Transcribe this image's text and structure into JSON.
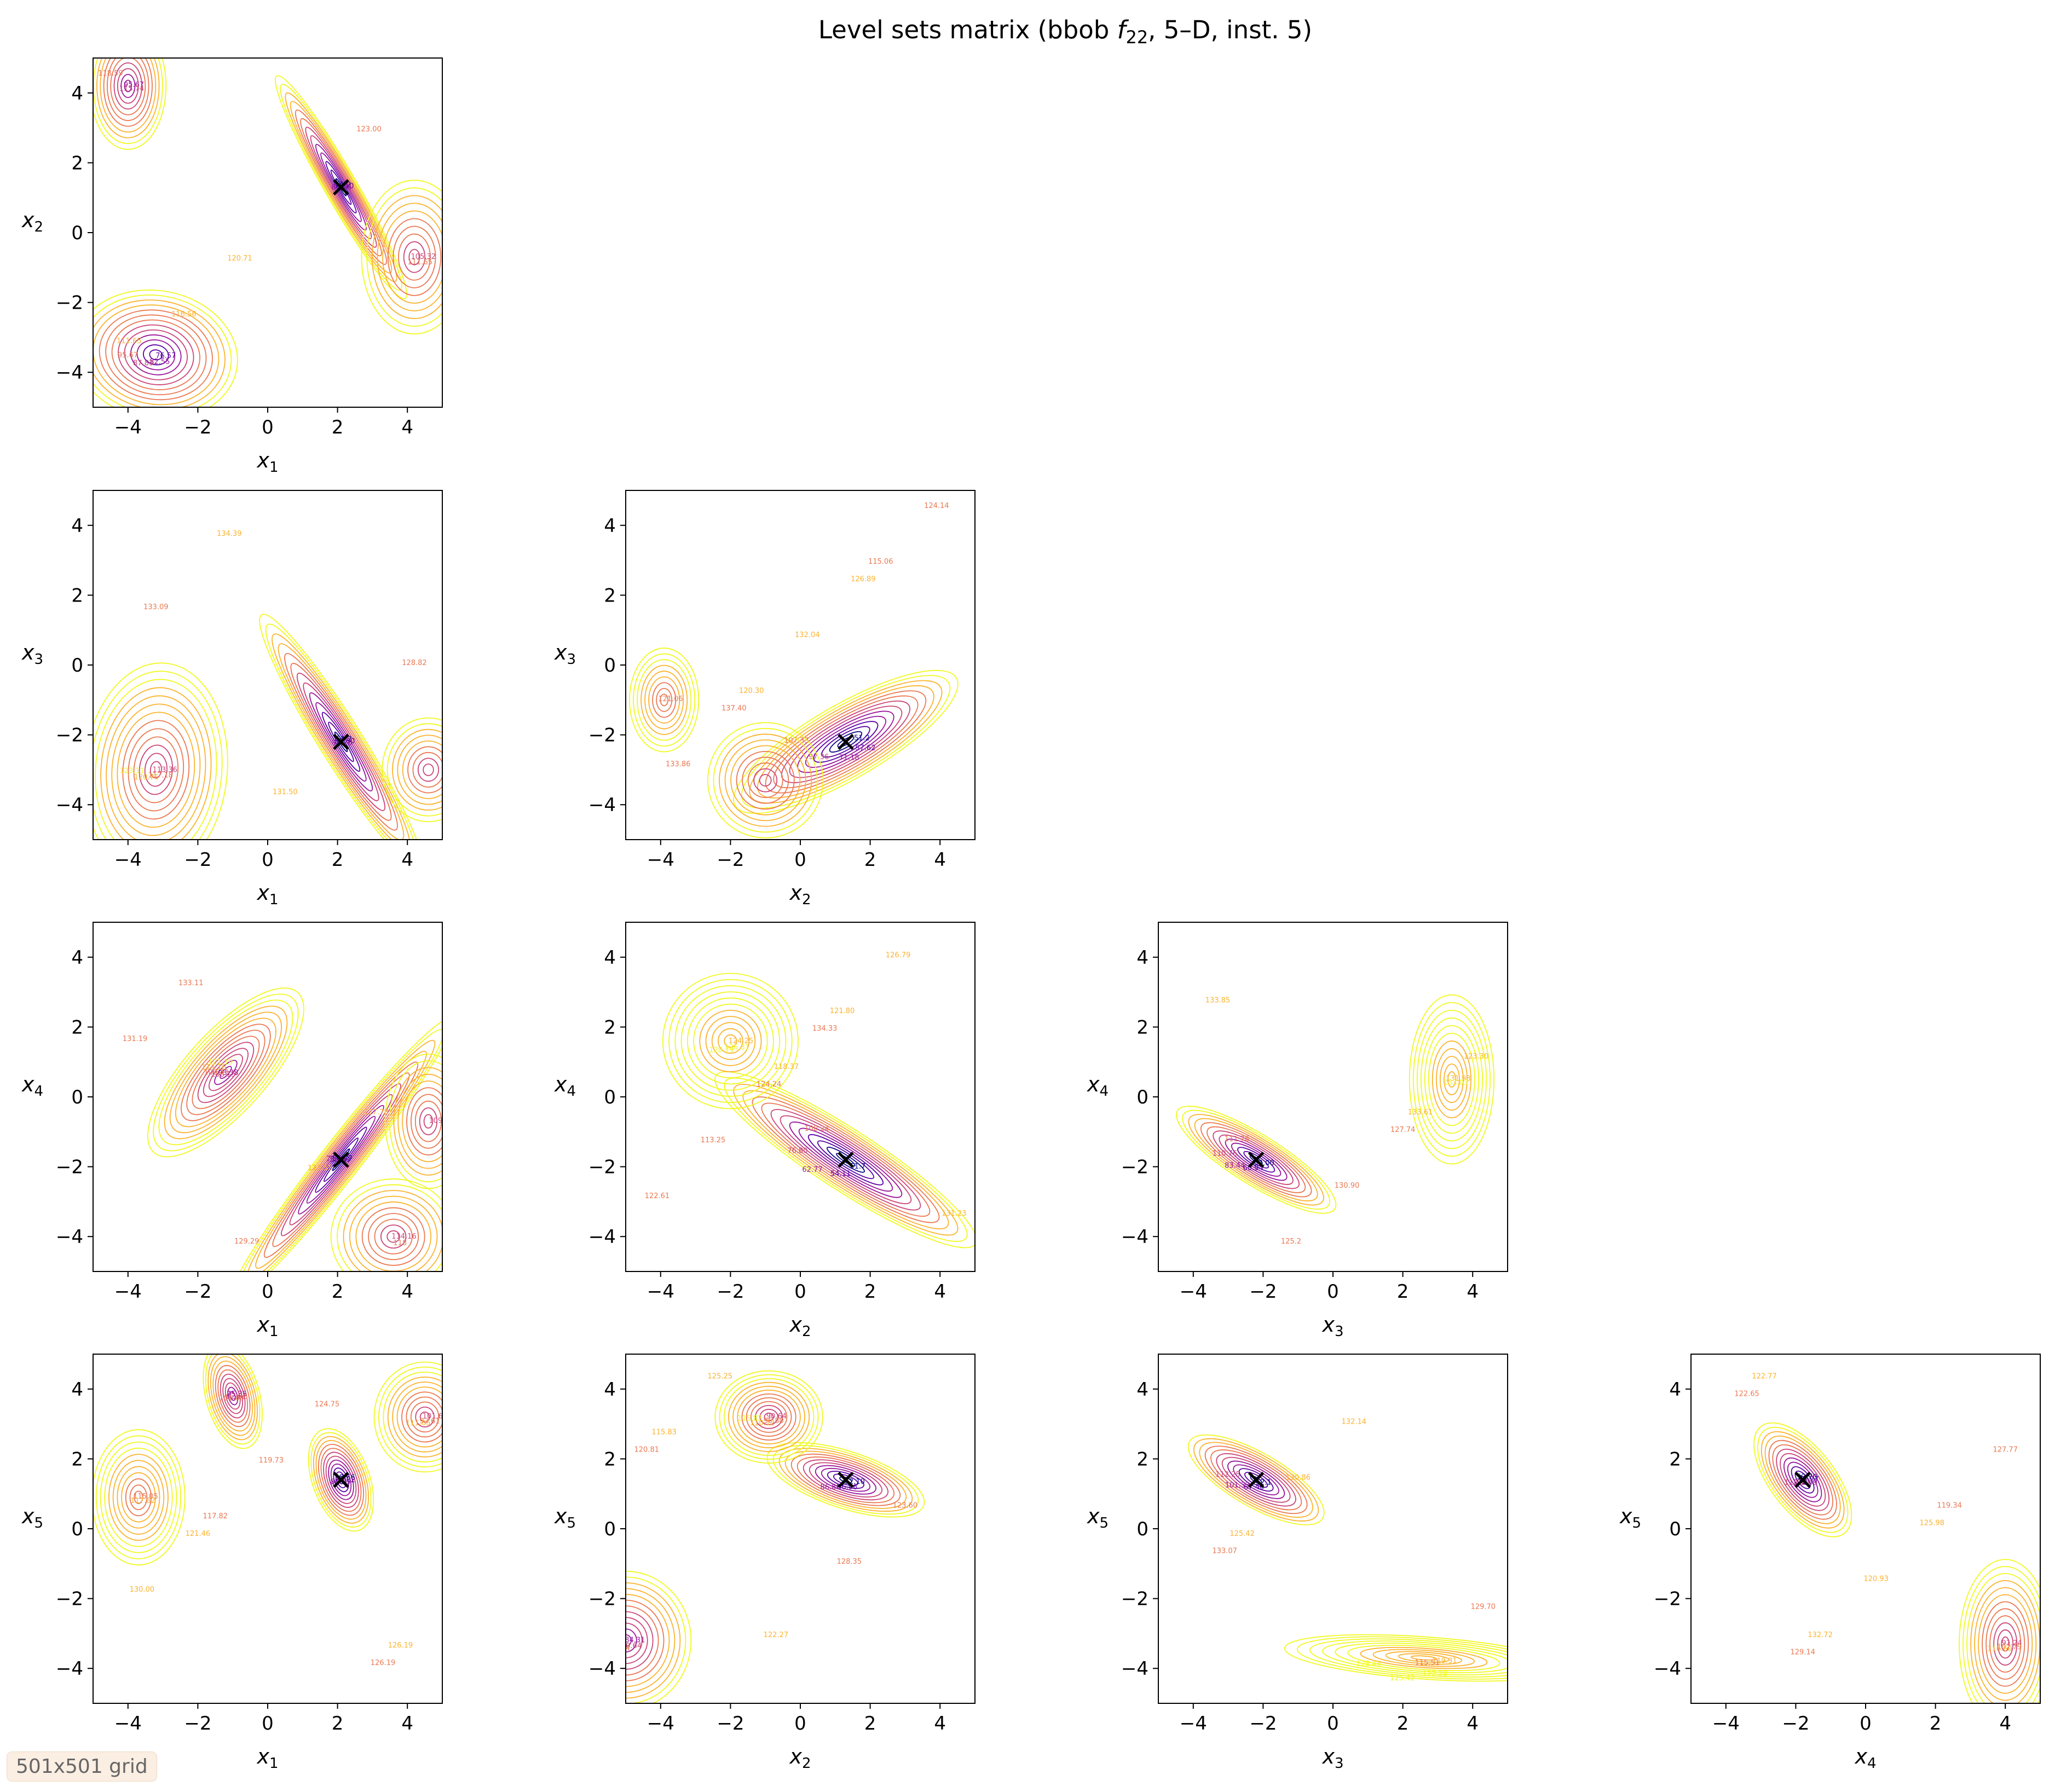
{
  "chart_data": {
    "type": "contour-matrix",
    "title": "Level sets matrix (bbob f₂₂, 5–D, inst. 5)",
    "title_parts": {
      "main": "Level sets matrix (bbob ",
      "f": "f",
      "sub": "22",
      "rest": ", 5–D, inst. 5)"
    },
    "grid_note": "501x501 grid",
    "xlim": [
      -5,
      5
    ],
    "ylim": [
      -5,
      5
    ],
    "ticks": [
      -4,
      -2,
      0,
      2,
      4
    ],
    "tick_labels": [
      "−4",
      "−2",
      "0",
      "2",
      "4"
    ],
    "optimum": {
      "x1": 2.1,
      "x2": 1.3,
      "x3": -2.2,
      "x4": -1.8,
      "x5": 1.4
    },
    "colormap": [
      "#0d0887",
      "#5b02a3",
      "#9a179b",
      "#cb4678",
      "#eb7852",
      "#fbb32f",
      "#f0f921"
    ],
    "grid": false,
    "panels": [
      {
        "id": "x1-x2",
        "xvar": "x",
        "xsub": "1",
        "yvar": "x",
        "ysub": "2",
        "opt": [
          2.1,
          1.3
        ],
        "minima": [
          {
            "c": [
              2.1,
              1.3
            ],
            "sx": 0.45,
            "sy": 3.6,
            "rot": -30,
            "n": 7,
            "lv": 0,
            "labels": [
              "51.2",
              "56.10",
              "67.74"
            ]
          },
          {
            "c": [
              -3.2,
              -3.5
            ],
            "sx": 2.3,
            "sy": 1.8,
            "rot": 10,
            "n": 7,
            "lv": 1,
            "labels": [
              "76.57",
              "82.55",
              "87.83",
              "95.67",
              "111.65"
            ]
          },
          {
            "c": [
              -4.0,
              4.2
            ],
            "sx": 0.9,
            "sy": 1.5,
            "rot": 0,
            "n": 5,
            "lv": 2,
            "labels": [
              "95.67",
              "115.74"
            ]
          },
          {
            "c": [
              4.2,
              -0.7
            ],
            "sx": 1.1,
            "sy": 1.6,
            "rot": 0,
            "n": 4,
            "lv": 3,
            "labels": [
              "105.32",
              "111.65"
            ]
          }
        ],
        "extra_labels": [
          "118.59",
          "120.71",
          "123.00",
          "116.56"
        ]
      },
      {
        "id": "x1-x3",
        "xvar": "x",
        "xsub": "1",
        "yvar": "x",
        "ysub": "3",
        "opt": [
          2.1,
          -2.2
        ],
        "minima": [
          {
            "c": [
              2.1,
              -2.2
            ],
            "sx": 0.6,
            "sy": 4.2,
            "rot": -32,
            "n": 7,
            "lv": 0,
            "labels": [
              "51.2",
              "60.60",
              "82.26"
            ]
          },
          {
            "c": [
              -3.2,
              -3.0
            ],
            "sx": 2.0,
            "sy": 3.0,
            "rot": 5,
            "n": 7,
            "lv": 3,
            "labels": [
              "113.36",
              "117.18",
              "120.76",
              "123.11"
            ]
          },
          {
            "c": [
              4.6,
              -3.0
            ],
            "sx": 0.8,
            "sy": 0.9,
            "rot": 0,
            "n": 3,
            "lv": 3,
            "labels": []
          }
        ],
        "extra_labels": [
          "133.09",
          "131.50",
          "128.82",
          "134.39"
        ]
      },
      {
        "id": "x2-x3",
        "xvar": "x",
        "xsub": "2",
        "yvar": "x",
        "ysub": "3",
        "opt": [
          1.3,
          -2.2
        ],
        "minima": [
          {
            "c": [
              1.3,
              -2.2
            ],
            "sx": 3.8,
            "sy": 1.1,
            "rot": -30,
            "n": 8,
            "lv": 0,
            "labels": [
              "51.2",
              "57.62",
              "71.18",
              "97.36",
              "107.33"
            ]
          },
          {
            "c": [
              -3.9,
              -1.0
            ],
            "sx": 0.6,
            "sy": 0.9,
            "rot": 0,
            "n": 3,
            "lv": 4,
            "labels": [
              "121.06"
            ]
          },
          {
            "c": [
              -1.0,
              -3.3
            ],
            "sx": 1.2,
            "sy": 1.2,
            "rot": 0,
            "n": 4,
            "lv": 3,
            "labels": []
          }
        ],
        "extra_labels": [
          "137.40",
          "126.89",
          "133.86",
          "132.04",
          "124.14",
          "120.30",
          "115.06"
        ]
      },
      {
        "id": "x1-x4",
        "xvar": "x",
        "xsub": "1",
        "yvar": "x",
        "ysub": "4",
        "opt": [
          2.1,
          -1.8
        ],
        "minima": [
          {
            "c": [
              2.1,
              -1.8
            ],
            "sx": 0.55,
            "sy": 5.0,
            "rot": 38,
            "n": 7,
            "lv": 0,
            "labels": [
              "51.77",
              "58.59",
              "73.64"
            ]
          },
          {
            "c": [
              -1.2,
              0.7
            ],
            "sx": 1.2,
            "sy": 3.2,
            "rot": 42,
            "n": 8,
            "lv": 2,
            "labels": [
              "93.38",
              "108.15",
              "109.43",
              "114.16",
              "121.19"
            ]
          },
          {
            "c": [
              4.6,
              -0.7
            ],
            "sx": 0.9,
            "sy": 1.4,
            "rot": 0,
            "n": 4,
            "lv": 3,
            "labels": [
              "109"
            ]
          },
          {
            "c": [
              3.6,
              -4.0
            ],
            "sx": 1.3,
            "sy": 1.2,
            "rot": 0,
            "n": 4,
            "lv": 3,
            "labels": [
              "114.16",
              "118"
            ]
          }
        ],
        "extra_labels": [
          "129.29",
          "127.78",
          "133.11",
          "123.55",
          "131.19"
        ]
      },
      {
        "id": "x2-x4",
        "xvar": "x",
        "xsub": "2",
        "yvar": "x",
        "ysub": "4",
        "opt": [
          1.3,
          -1.8
        ],
        "minima": [
          {
            "c": [
              1.3,
              -1.8
            ],
            "sx": 4.6,
            "sy": 0.9,
            "rot": 33,
            "n": 8,
            "lv": 0,
            "labels": [
              "51.7",
              "54.11",
              "62.77",
              "76.80",
              "100.24"
            ]
          },
          {
            "c": [
              -2.0,
              1.6
            ],
            "sx": 1.6,
            "sy": 1.6,
            "rot": 0,
            "n": 5,
            "lv": 5,
            "labels": [
              "124.25",
              "126.31",
              "128.79"
            ]
          }
        ],
        "extra_labels": [
          "134.33",
          "131.23",
          "124.24",
          "126.79",
          "113.25",
          "121.80",
          "122.61",
          "118.37"
        ]
      },
      {
        "id": "x3-x4",
        "xvar": "x",
        "xsub": "3",
        "yvar": "x",
        "ysub": "4",
        "opt": [
          -2.2,
          -1.8
        ],
        "minima": [
          {
            "c": [
              -2.2,
              -1.8
            ],
            "sx": 2.6,
            "sy": 0.7,
            "rot": 32,
            "n": 7,
            "lv": 0,
            "labels": [
              "52.00",
              "60.94",
              "83.44",
              "110.76",
              "111.76"
            ]
          },
          {
            "c": [
              3.4,
              0.5
            ],
            "sx": 1.0,
            "sy": 2.0,
            "rot": 0,
            "n": 5,
            "lv": 5,
            "labels": [
              "131.98",
              "133.03"
            ]
          }
        ],
        "extra_labels": [
          "127.74",
          "133.85",
          "130.90",
          "123.30",
          "125.2",
          "133.61"
        ]
      },
      {
        "id": "x1-x5",
        "xvar": "x",
        "xsub": "1",
        "yvar": "x",
        "ysub": "5",
        "opt": [
          2.1,
          1.4
        ],
        "minima": [
          {
            "c": [
              2.1,
              1.4
            ],
            "sx": 0.8,
            "sy": 1.5,
            "rot": -20,
            "n": 7,
            "lv": 0,
            "labels": [
              "53.66",
              "72.62",
              "80.35"
            ]
          },
          {
            "c": [
              -1.0,
              3.8
            ],
            "sx": 0.7,
            "sy": 1.4,
            "rot": -15,
            "n": 6,
            "lv": 2,
            "labels": [
              "75.35",
              "92.61",
              "101.60"
            ]
          },
          {
            "c": [
              -3.7,
              0.9
            ],
            "sx": 1.1,
            "sy": 1.6,
            "rot": 0,
            "n": 5,
            "lv": 4,
            "labels": [
              "115.05",
              "117.82"
            ]
          },
          {
            "c": [
              4.5,
              3.2
            ],
            "sx": 1.2,
            "sy": 1.3,
            "rot": 0,
            "n": 5,
            "lv": 3,
            "labels": [
              "101.6",
              "92.61",
              "111.05"
            ]
          }
        ],
        "extra_labels": [
          "126.19",
          "121.46",
          "124.75",
          "130.00",
          "119.73",
          "126.19",
          "117.82"
        ]
      },
      {
        "id": "x2-x5",
        "xvar": "x",
        "xsub": "2",
        "yvar": "x",
        "ysub": "5",
        "opt": [
          1.3,
          1.4
        ],
        "minima": [
          {
            "c": [
              1.3,
              1.4
            ],
            "sx": 2.3,
            "sy": 0.8,
            "rot": 18,
            "n": 7,
            "lv": 0,
            "labels": [
              "52.10",
              "66.96",
              "86.80"
            ]
          },
          {
            "c": [
              -0.9,
              3.2
            ],
            "sx": 1.4,
            "sy": 1.2,
            "rot": 0,
            "n": 6,
            "lv": 3,
            "labels": [
              "90.64",
              "96.80",
              "110.12",
              "115.83"
            ]
          },
          {
            "c": [
              -5.0,
              -3.2
            ],
            "sx": 1.7,
            "sy": 1.8,
            "rot": 0,
            "n": 6,
            "lv": 2,
            "labels": [
              "84.31",
              "90.64",
              "103.34",
              "110.12"
            ]
          }
        ],
        "extra_labels": [
          "120.81",
          "122.27",
          "123.60",
          "125.25",
          "128.35",
          "115.83"
        ]
      },
      {
        "id": "x3-x5",
        "xvar": "x",
        "xsub": "3",
        "yvar": "x",
        "ysub": "5",
        "opt": [
          -2.2,
          1.4
        ],
        "minima": [
          {
            "c": [
              -2.2,
              1.4
            ],
            "sx": 2.0,
            "sy": 0.7,
            "rot": 30,
            "n": 6,
            "lv": 0,
            "labels": [
              "52.1",
              "67.46",
              "101.33",
              "112.25"
            ]
          },
          {
            "c": [
              2.6,
              -3.7
            ],
            "sx": 3.3,
            "sy": 0.5,
            "rot": 4,
            "n": 5,
            "lv": 5,
            "labels": [
              "119.31",
              "122.28",
              "125.42",
              "128.46"
            ]
          }
        ],
        "extra_labels": [
          "133.07",
          "132.14",
          "129.70",
          "130.86",
          "115.51",
          "125.42"
        ]
      },
      {
        "id": "x4-x5",
        "xvar": "x",
        "xsub": "4",
        "yvar": "x",
        "ysub": "5",
        "opt": [
          -1.8,
          1.4
        ],
        "minima": [
          {
            "c": [
              -1.8,
              1.4
            ],
            "sx": 0.9,
            "sy": 1.9,
            "rot": -38,
            "n": 7,
            "lv": 0,
            "labels": [
              "52.70",
              "74.77",
              "102.49",
              "113.79"
            ]
          },
          {
            "c": [
              4.0,
              -3.3
            ],
            "sx": 1.2,
            "sy": 2.2,
            "rot": 0,
            "n": 6,
            "lv": 3,
            "labels": [
              "91.24",
              "102.79",
              "116.60"
            ]
          }
        ],
        "extra_labels": [
          "129.14",
          "125.98",
          "122.65",
          "120.93",
          "127.77",
          "132.72",
          "119.34",
          "122.77"
        ]
      }
    ]
  }
}
